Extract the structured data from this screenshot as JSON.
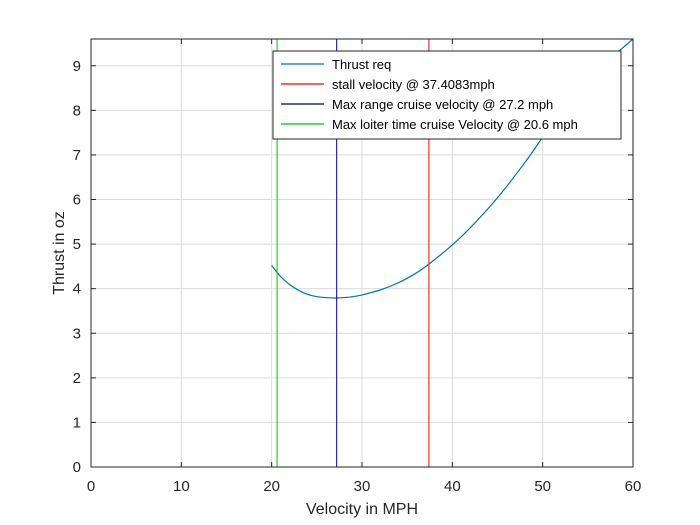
{
  "chart_data": {
    "type": "line",
    "title": "",
    "xlabel": "Velocity in MPH",
    "ylabel": "Thrust in oz",
    "xlim": [
      0,
      60
    ],
    "ylim": [
      0,
      9.6
    ],
    "xticks": [
      0,
      10,
      20,
      30,
      40,
      50,
      60
    ],
    "yticks": [
      0,
      1,
      2,
      3,
      4,
      5,
      6,
      7,
      8,
      9
    ],
    "grid": true,
    "legend_position": "top-right",
    "series": [
      {
        "name": "Thrust req",
        "color": "#0072BD",
        "style": "curve",
        "x": [
          20.0,
          21.0,
          22.0,
          23.0,
          24.0,
          25.0,
          26.0,
          27.0,
          27.2,
          28.0,
          29.0,
          30.0,
          32.0,
          34.0,
          36.0,
          37.4,
          40.0,
          42.0,
          45.0,
          48.0,
          50.0,
          52.0,
          55.0,
          58.0,
          60.0
        ],
        "y": [
          4.52,
          4.27,
          4.09,
          3.96,
          3.87,
          3.82,
          3.8,
          3.79,
          3.79,
          3.8,
          3.82,
          3.86,
          3.97,
          4.13,
          4.35,
          4.55,
          4.98,
          5.37,
          6.04,
          6.82,
          7.4,
          7.99,
          8.73,
          9.25,
          9.6
        ]
      },
      {
        "name": "stall velocity @ 37.4083mph",
        "color": "#FF0000",
        "style": "vertical",
        "x": 37.4083
      },
      {
        "name": "Max range cruise velocity @ 27.2 mph",
        "color": "#00007F",
        "style": "vertical",
        "x": 27.2
      },
      {
        "name": "Max loiter time cruise Velocity @ 20.6 mph",
        "color": "#00C000",
        "style": "vertical",
        "x": 20.6
      }
    ]
  }
}
